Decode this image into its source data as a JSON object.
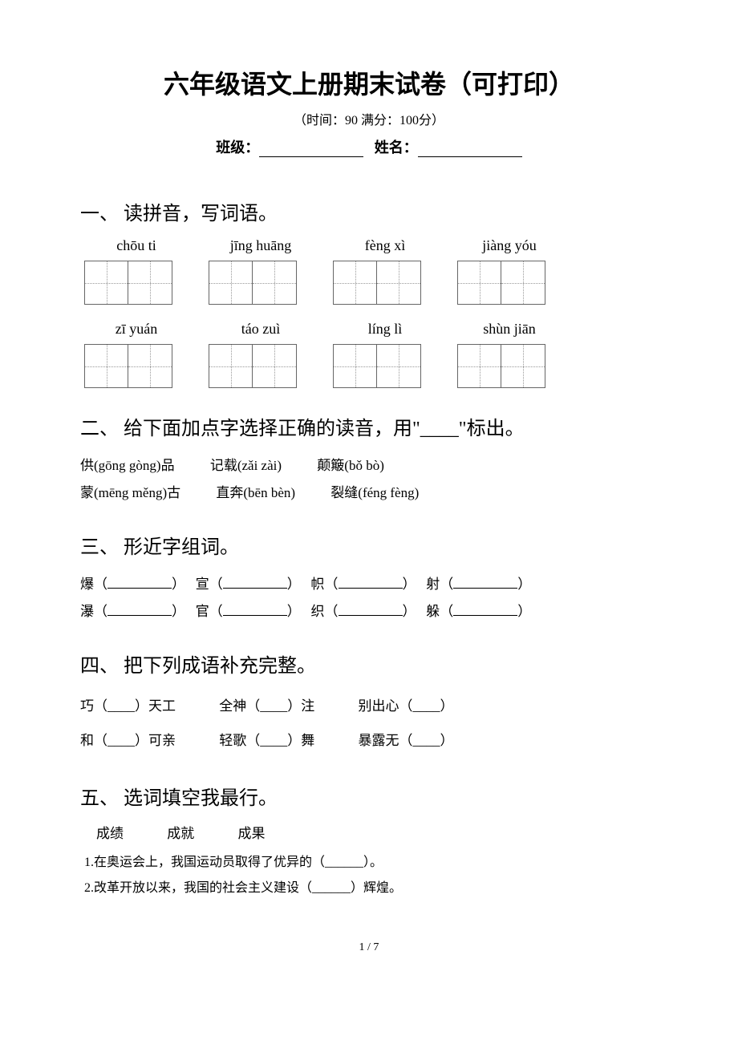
{
  "title": "六年级语文上册期末试卷（可打印）",
  "subtitle": "（时间：90   满分：100分）",
  "form": {
    "class_label": "班级：",
    "name_label": "姓名："
  },
  "section1": {
    "heading": "一、 读拼音，写词语。",
    "row1": [
      "chōu ti",
      "jīng huāng",
      "fèng xì",
      "jiàng yóu"
    ],
    "row2": [
      "zī yuán",
      "táo zuì",
      "líng lì",
      "shùn jiān"
    ]
  },
  "section2": {
    "heading": "二、 给下面加点字选择正确的读音，用\"____\"标出。",
    "line1_a": "供(gōng   gòng)品",
    "line1_b": "记载(zǎi   zài)",
    "line1_c": "颠簸(bǒ   bò)",
    "line2_a": "蒙(mēng   měng)古",
    "line2_b": "直奔(bēn   bèn)",
    "line2_c": "裂缝(féng   fèng)"
  },
  "section3": {
    "heading": "三、 形近字组词。",
    "row1": [
      "爆",
      "宣",
      "帜",
      "射"
    ],
    "row2": [
      "瀑",
      "官",
      "织",
      "躲"
    ]
  },
  "section4": {
    "heading": "四、 把下列成语补充完整。",
    "row1": {
      "a": "巧（____）天工",
      "b": "全神（____）注",
      "c": "别出心（____）"
    },
    "row2": {
      "a": "和（____）可亲",
      "b": "轻歌（____）舞",
      "c": "暴露无（____）"
    }
  },
  "section5": {
    "heading": "五、 选词填空我最行。",
    "words": [
      "成绩",
      "成就",
      "成果"
    ],
    "item1": "1.在奥运会上，我国运动员取得了优异的（______）。",
    "item2": "2.改革开放以来，我国的社会主义建设（______）辉煌。"
  },
  "footer": "1 / 7"
}
